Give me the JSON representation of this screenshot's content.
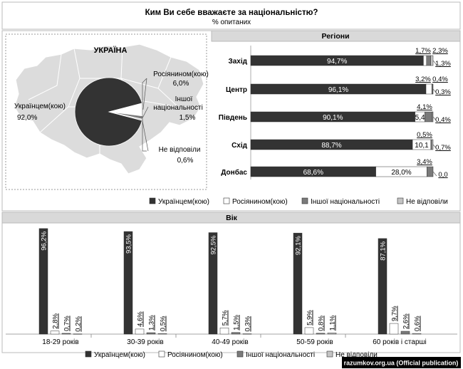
{
  "header": {
    "title": "Ким Ви себе вважаєте за національністю?",
    "subtitle": "% опитаних"
  },
  "colors": {
    "ukr": "#333333",
    "rus": "#ffffff",
    "other": "#7a7a7a",
    "na": "#c4c4c4",
    "header_bg": "#d9d9d9",
    "map": "#dcdcdc"
  },
  "map": {
    "label": "УКРАЇНА"
  },
  "legend": [
    "Українцем(кою)",
    "Росіянином(кою)",
    "Іншої національності",
    "Не відповіли"
  ],
  "footer": "razumkov.org.ua (Official publication)",
  "chart_data": [
    {
      "type": "pie",
      "title": "Україна",
      "labels": [
        "Українцем(кою)",
        "Росіянином(кою)",
        "Іншої національності",
        "Не відповіли"
      ],
      "values": [
        92.0,
        6.0,
        1.5,
        0.6
      ],
      "display": [
        "92,0%",
        "6,0%",
        "1,5%",
        "0,6%"
      ]
    },
    {
      "type": "bar",
      "orientation": "horizontal-stacked",
      "title": "Регіони",
      "categories": [
        "Захід",
        "Центр",
        "Південь",
        "Схід",
        "Донбас"
      ],
      "series": [
        {
          "name": "Українцем(кою)",
          "values": [
            94.7,
            96.1,
            90.1,
            88.7,
            68.6
          ],
          "labels": [
            "94,7%",
            "96,1%",
            "90,1%",
            "88,7%",
            "68,6%"
          ]
        },
        {
          "name": "Росіянином(кою)",
          "values": [
            1.7,
            3.2,
            5.4,
            10.1,
            28.0
          ],
          "labels": [
            "1,7%",
            "3,2%",
            "5,4",
            "10,1",
            "28,0%"
          ]
        },
        {
          "name": "Іншої національності",
          "values": [
            2.3,
            0.4,
            4.1,
            0.5,
            3.4
          ],
          "labels": [
            "2,3%",
            "0,4%",
            "4,1%",
            "0,5%",
            "3,4%"
          ]
        },
        {
          "name": "Не відповіли",
          "values": [
            1.3,
            0.3,
            0.4,
            0.7,
            0.0
          ],
          "labels": [
            "1,3%",
            "0,3%",
            "0,4%",
            "0,7%",
            "0,0"
          ]
        }
      ],
      "xlim": [
        0,
        100
      ]
    },
    {
      "type": "bar",
      "orientation": "vertical-grouped",
      "title": "Вік",
      "categories": [
        "18-29 років",
        "30-39 років",
        "40-49 років",
        "50-59 років",
        "60 років і старші"
      ],
      "series": [
        {
          "name": "Українцем(кою)",
          "values": [
            96.2,
            93.5,
            92.5,
            92.1,
            87.1
          ],
          "labels": [
            "96,2%",
            "93,5%",
            "92,5%",
            "92,1%",
            "87,1%"
          ]
        },
        {
          "name": "Росіянином(кою)",
          "values": [
            2.8,
            4.6,
            5.7,
            5.9,
            9.7
          ],
          "labels": [
            "2,8%",
            "4,6%",
            "5,7%",
            "5,9%",
            "9,7%"
          ]
        },
        {
          "name": "Іншої національності",
          "values": [
            0.7,
            1.3,
            1.5,
            0.8,
            2.6
          ],
          "labels": [
            "0,7%",
            "1,3%",
            "1,5%",
            "0,8%",
            "2,6%"
          ]
        },
        {
          "name": "Не відповіли",
          "values": [
            0.2,
            0.5,
            0.3,
            1.1,
            0.6
          ],
          "labels": [
            "0,2%",
            "0,5%",
            "0,3%",
            "1,1%",
            "0,6%"
          ]
        }
      ],
      "ylim": [
        0,
        100
      ]
    }
  ]
}
